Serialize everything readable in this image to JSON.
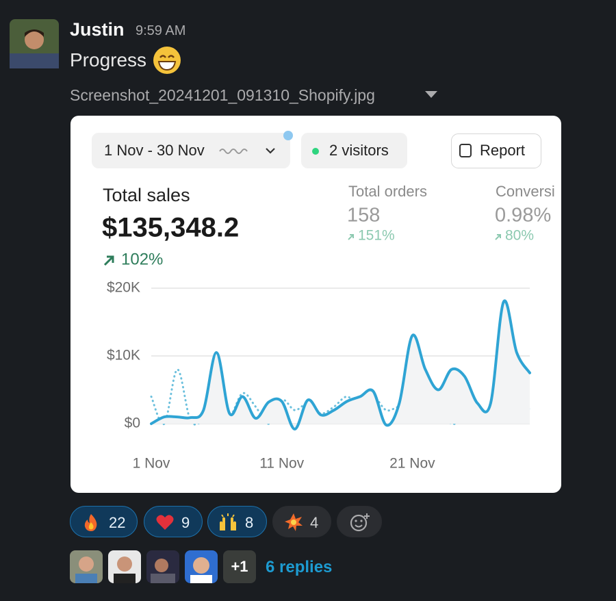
{
  "message": {
    "author": "Justin",
    "time": "9:59 AM",
    "text": "Progress",
    "attachment": "Screenshot_20241201_091310_Shopify.jpg"
  },
  "screenshot": {
    "date_range": "1 Nov - 30 Nov",
    "visitors": "2 visitors",
    "report_button": "Report",
    "metrics": [
      {
        "label": "Total sales",
        "value": "$135,348.2",
        "change": "102%"
      },
      {
        "label": "Total orders",
        "value": "158",
        "change": "151%"
      },
      {
        "label": "Conversi",
        "value": "0.98%",
        "change": "80%"
      }
    ]
  },
  "chart_data": {
    "type": "line",
    "categories": [
      "1 Nov",
      null,
      null,
      null,
      null,
      null,
      null,
      null,
      null,
      null,
      "11 Nov",
      null,
      null,
      null,
      null,
      null,
      null,
      null,
      null,
      null,
      "21 Nov",
      null,
      null,
      null,
      null,
      null,
      null,
      null,
      null,
      null
    ],
    "series": [
      {
        "color": "#2fa4d4",
        "style": "solid",
        "area": true,
        "values": [
          0,
          1000,
          1000,
          900,
          2000,
          10500,
          1500,
          4000,
          800,
          3200,
          3300,
          -800,
          3500,
          1300,
          2000,
          3300,
          4000,
          4800,
          -200,
          3000,
          13000,
          8000,
          5000,
          8000,
          7000,
          3000,
          3000,
          18000,
          10500,
          7500
        ]
      },
      {
        "color": "#6cc0dd",
        "style": "dotted",
        "values": [
          4000,
          0,
          8000,
          500,
          500,
          2000,
          1000,
          4500,
          2500,
          0,
          3500,
          2000,
          3000,
          1500,
          2500,
          4000,
          2500,
          4000,
          2000,
          2500,
          2300,
          4500,
          3000,
          0,
          1000,
          1000,
          2000,
          9500,
          5000,
          2000
        ]
      }
    ],
    "ylim": [
      0,
      20000
    ],
    "yticks": [
      {
        "value": 0,
        "label": "$0"
      },
      {
        "value": 10000,
        "label": "$10K"
      },
      {
        "value": 20000,
        "label": "$20K"
      }
    ],
    "grid": true
  },
  "reactions": [
    22,
    9,
    8,
    4
  ],
  "thread": {
    "more_avatars": "+1",
    "replies": "6 replies"
  }
}
